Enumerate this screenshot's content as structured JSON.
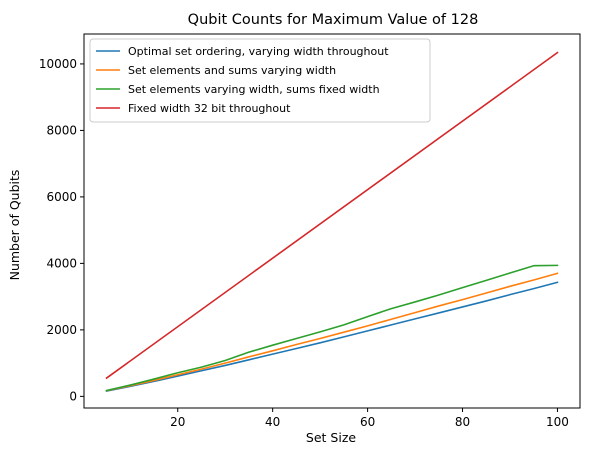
{
  "chart_data": {
    "type": "line",
    "title": "Qubit Counts for Maximum Value of 128",
    "xlabel": "Set Size",
    "ylabel": "Number of Qubits",
    "xlim": [
      0.25,
      104.75
    ],
    "ylim": [
      -350,
      10900
    ],
    "xticks": [
      20,
      40,
      60,
      80,
      100
    ],
    "xtick_labels": [
      "20",
      "40",
      "60",
      "80",
      "100"
    ],
    "yticks": [
      0,
      2000,
      4000,
      6000,
      8000,
      10000
    ],
    "ytick_labels": [
      "0",
      "2000",
      "4000",
      "6000",
      "8000",
      "10000"
    ],
    "grid": false,
    "legend_position": "top-left",
    "series": [
      {
        "name": "Optimal set ordering, varying width throughout",
        "color": "#1f77b4",
        "x": [
          5,
          10,
          15,
          20,
          25,
          30,
          35,
          40,
          45,
          50,
          55,
          60,
          65,
          70,
          75,
          80,
          85,
          90,
          95,
          100
        ],
        "y": [
          160,
          300,
          450,
          610,
          770,
          930,
          1100,
          1270,
          1440,
          1610,
          1790,
          1970,
          2150,
          2330,
          2510,
          2690,
          2870,
          3060,
          3240,
          3430
        ]
      },
      {
        "name": "Set elements and sums varying width",
        "color": "#ff7f0e",
        "x": [
          5,
          10,
          15,
          20,
          25,
          30,
          35,
          40,
          45,
          50,
          55,
          60,
          65,
          70,
          75,
          80,
          85,
          90,
          95,
          100
        ],
        "y": [
          170,
          320,
          480,
          650,
          820,
          1000,
          1190,
          1370,
          1560,
          1740,
          1930,
          2120,
          2320,
          2520,
          2720,
          2910,
          3110,
          3310,
          3500,
          3700
        ]
      },
      {
        "name": "Set elements varying width, sums fixed width",
        "color": "#2ca02c",
        "x": [
          5,
          10,
          15,
          20,
          25,
          30,
          35,
          40,
          45,
          50,
          55,
          60,
          65,
          70,
          75,
          80,
          85,
          90,
          95,
          100
        ],
        "y": [
          175,
          340,
          520,
          710,
          880,
          1080,
          1330,
          1540,
          1740,
          1940,
          2150,
          2400,
          2640,
          2840,
          3050,
          3270,
          3490,
          3710,
          3930,
          3940
        ]
      },
      {
        "name": "Fixed width 32 bit throughout",
        "color": "#d62728",
        "x": [
          5,
          100
        ],
        "y": [
          550,
          10340
        ]
      }
    ]
  }
}
